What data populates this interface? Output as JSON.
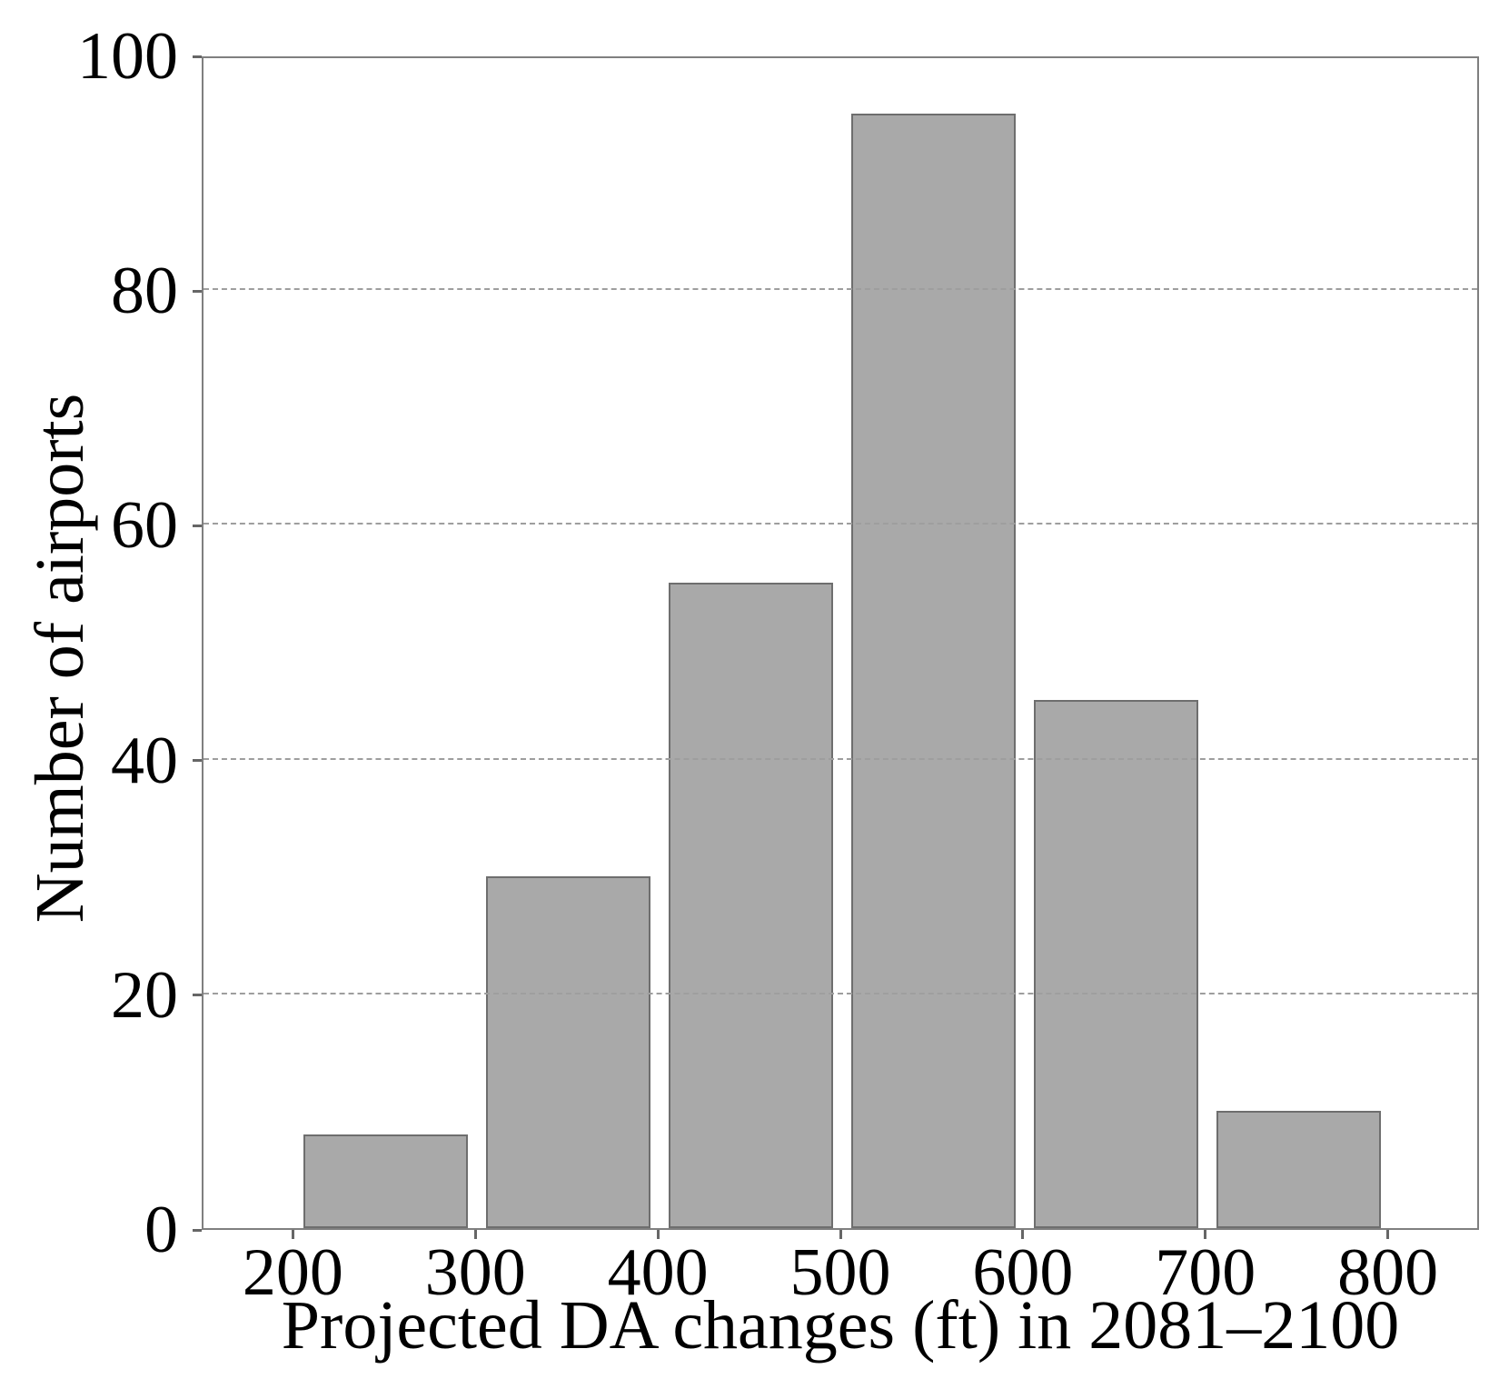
{
  "chart_data": {
    "type": "bar",
    "subtype": "histogram",
    "xlabel": "Projected DA changes (ft) in 2081–2100",
    "ylabel": "Number of airports",
    "bin_edges": [
      200,
      300,
      400,
      500,
      600,
      700,
      800
    ],
    "categories": [
      "200–300",
      "300–400",
      "400–500",
      "500–600",
      "600–700",
      "700–800"
    ],
    "values": [
      8,
      30,
      55,
      95,
      45,
      10
    ],
    "x_ticks": [
      200,
      300,
      400,
      500,
      600,
      700,
      800
    ],
    "y_ticks": [
      0,
      20,
      40,
      60,
      80,
      100
    ],
    "xlim": [
      150,
      850
    ],
    "ylim": [
      0,
      100
    ],
    "grid": {
      "horizontal": true,
      "at": [
        20,
        40,
        60,
        80
      ],
      "style": "dashed",
      "above_bars": true
    },
    "legend": "none",
    "colors": {
      "bar_fill": "#a9a9a9",
      "bar_edge": "#6e6e6e",
      "spine": "#7f7f7f",
      "gridline": "#9e9e9e",
      "tick": "#666666",
      "text": "#000000",
      "background": "#ffffff"
    },
    "bar_rel_width": 0.9
  }
}
